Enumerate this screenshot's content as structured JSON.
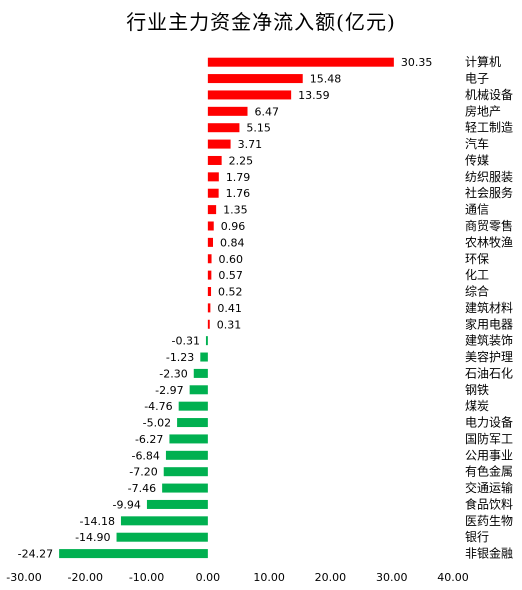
{
  "chart_data": {
    "type": "bar",
    "orientation": "horizontal",
    "title": "行业主力资金净流入额(亿元)",
    "xlim": [
      -30,
      40
    ],
    "xticks": [
      "-30.00",
      "-20.00",
      "-10.00",
      "0.00",
      "10.00",
      "20.00",
      "30.00",
      "40.00"
    ],
    "grid": false,
    "colors": {
      "positive": "#ff0000",
      "negative": "#00b050"
    },
    "categories": [
      "计算机",
      "电子",
      "机械设备",
      "房地产",
      "轻工制造",
      "汽车",
      "传媒",
      "纺织服装",
      "社会服务",
      "通信",
      "商贸零售",
      "农林牧渔",
      "环保",
      "化工",
      "综合",
      "建筑材料",
      "家用电器",
      "建筑装饰",
      "美容护理",
      "石油石化",
      "钢铁",
      "煤炭",
      "电力设备",
      "国防军工",
      "公用事业",
      "有色金属",
      "交通运输",
      "食品饮料",
      "医药生物",
      "银行",
      "非银金融"
    ],
    "values": [
      30.35,
      15.48,
      13.59,
      6.47,
      5.15,
      3.71,
      2.25,
      1.79,
      1.76,
      1.35,
      0.96,
      0.84,
      0.6,
      0.57,
      0.52,
      0.41,
      0.31,
      -0.31,
      -1.23,
      -2.3,
      -2.97,
      -4.76,
      -5.02,
      -6.27,
      -6.84,
      -7.2,
      -7.46,
      -9.94,
      -14.18,
      -14.9,
      -24.27
    ],
    "value_labels": [
      "30.35",
      "15.48",
      "13.59",
      "6.47",
      "5.15",
      "3.71",
      "2.25",
      "1.79",
      "1.76",
      "1.35",
      "0.96",
      "0.84",
      "0.60",
      "0.57",
      "0.52",
      "0.41",
      "0.31",
      "-0.31",
      "-1.23",
      "-2.30",
      "-2.97",
      "-4.76",
      "-5.02",
      "-6.27",
      "-6.84",
      "-7.20",
      "-7.46",
      "-9.94",
      "-14.18",
      "-14.90",
      "-24.27"
    ]
  }
}
